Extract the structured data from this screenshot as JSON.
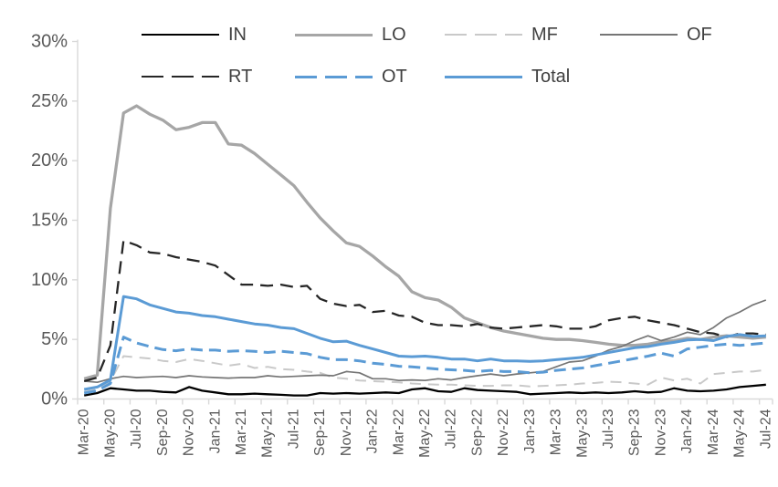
{
  "chart_data": {
    "type": "line",
    "title": "",
    "xlabel": "",
    "ylabel": "",
    "grid": false,
    "legend_position": "top",
    "ylim": [
      0,
      30
    ],
    "y_ticks": [
      "0%",
      "5%",
      "10%",
      "15%",
      "20%",
      "25%",
      "30%"
    ],
    "x_label_interval": 2,
    "x": [
      "Mar-20",
      "Apr-20",
      "May-20",
      "Jun-20",
      "Jul-20",
      "Aug-20",
      "Sep-20",
      "Oct-20",
      "Nov-20",
      "Dec-20",
      "Jan-21",
      "Feb-21",
      "Mar-21",
      "Apr-21",
      "May-21",
      "Jun-21",
      "Jul-21",
      "Aug-21",
      "Sep-21",
      "Oct-21",
      "Nov-21",
      "Dec-21",
      "Jan-22",
      "Feb-22",
      "Mar-22",
      "Apr-22",
      "May-22",
      "Jun-22",
      "Jul-22",
      "Aug-22",
      "Sep-22",
      "Oct-22",
      "Nov-22",
      "Dec-22",
      "Jan-23",
      "Feb-23",
      "Mar-23",
      "Apr-23",
      "May-23",
      "Jun-23",
      "Jul-23",
      "Aug-23",
      "Sep-23",
      "Oct-23",
      "Nov-23",
      "Dec-23",
      "Jan-24",
      "Feb-24",
      "Mar-24",
      "Apr-24",
      "May-24",
      "Jun-24",
      "Jul-24"
    ],
    "x_labels_shown": [
      "Mar-20",
      "May-20",
      "Jul-20",
      "Sep-20",
      "Nov-20",
      "Jan-21",
      "Mar-21",
      "May-21",
      "Jul-21",
      "Sep-21",
      "Nov-21",
      "Jan-22",
      "Mar-22",
      "May-22",
      "Jul-22",
      "Sep-22",
      "Nov-22",
      "Jan-23",
      "Mar-23",
      "May-23",
      "Jul-23",
      "Sep-23",
      "Nov-23",
      "Jan-24",
      "Mar-24",
      "May-24",
      "Jul-24"
    ],
    "legend_rows": [
      [
        "IN",
        "LO",
        "MF",
        "OF"
      ],
      [
        "RT",
        "OT",
        "Total"
      ]
    ],
    "series": [
      {
        "name": "IN",
        "color": "#000000",
        "style": "solid",
        "width": 2.3,
        "values": [
          0.3,
          0.5,
          0.9,
          0.8,
          0.7,
          0.7,
          0.6,
          0.55,
          1.0,
          0.7,
          0.55,
          0.4,
          0.4,
          0.45,
          0.4,
          0.35,
          0.3,
          0.3,
          0.5,
          0.45,
          0.5,
          0.45,
          0.5,
          0.55,
          0.5,
          0.8,
          0.9,
          0.65,
          0.6,
          0.9,
          0.75,
          0.7,
          0.65,
          0.6,
          0.4,
          0.45,
          0.5,
          0.55,
          0.5,
          0.55,
          0.5,
          0.55,
          0.65,
          0.55,
          0.6,
          0.9,
          0.7,
          0.65,
          0.7,
          0.8,
          1.0,
          1.1,
          1.2
        ]
      },
      {
        "name": "LO",
        "color": "#A6A6A6",
        "style": "solid",
        "width": 3.3,
        "values": [
          1.7,
          2.0,
          16.0,
          24.0,
          24.6,
          23.9,
          23.4,
          22.6,
          22.8,
          23.2,
          23.2,
          21.4,
          21.3,
          20.6,
          19.7,
          18.8,
          17.9,
          16.5,
          15.2,
          14.1,
          13.1,
          12.8,
          12.0,
          11.1,
          10.3,
          9.0,
          8.5,
          8.3,
          7.7,
          6.8,
          6.4,
          6.0,
          5.7,
          5.5,
          5.3,
          5.1,
          5.0,
          5.0,
          4.9,
          4.75,
          4.6,
          4.5,
          4.5,
          4.6,
          4.8,
          4.9,
          5.1,
          5.0,
          5.2,
          5.3,
          5.2,
          5.1,
          5.2
        ]
      },
      {
        "name": "MF",
        "color": "#C9C9C9",
        "style": "dashed",
        "width": 2.0,
        "values": [
          0.6,
          0.8,
          1.5,
          3.6,
          3.5,
          3.4,
          3.2,
          3.1,
          3.35,
          3.2,
          3.0,
          2.8,
          2.95,
          2.6,
          2.7,
          2.5,
          2.45,
          2.3,
          2.2,
          1.8,
          1.7,
          1.55,
          1.5,
          1.45,
          1.4,
          1.3,
          1.25,
          1.2,
          1.2,
          1.15,
          1.1,
          1.1,
          1.15,
          1.15,
          1.05,
          1.1,
          1.15,
          1.2,
          1.3,
          1.35,
          1.45,
          1.4,
          1.3,
          1.2,
          1.8,
          1.55,
          1.7,
          1.3,
          2.1,
          2.2,
          2.3,
          2.3,
          2.45
        ]
      },
      {
        "name": "OF",
        "color": "#757575",
        "style": "solid",
        "width": 1.7,
        "values": [
          1.5,
          1.4,
          1.7,
          1.9,
          1.8,
          1.85,
          1.9,
          1.8,
          1.95,
          1.85,
          1.8,
          1.75,
          1.8,
          1.8,
          1.95,
          1.85,
          1.9,
          1.95,
          2.0,
          1.95,
          2.3,
          2.2,
          1.7,
          1.7,
          1.55,
          1.6,
          1.55,
          1.7,
          1.6,
          1.8,
          1.95,
          2.1,
          1.95,
          2.1,
          2.2,
          2.3,
          2.7,
          3.1,
          3.2,
          3.6,
          4.1,
          4.4,
          4.9,
          5.3,
          4.9,
          5.2,
          5.6,
          5.4,
          6.0,
          6.8,
          7.3,
          7.9,
          8.3
        ]
      },
      {
        "name": "RT",
        "color": "#262626",
        "style": "dashed",
        "width": 2.3,
        "values": [
          1.5,
          1.8,
          4.5,
          13.3,
          12.9,
          12.3,
          12.2,
          11.9,
          11.7,
          11.5,
          11.2,
          10.4,
          9.6,
          9.6,
          9.5,
          9.6,
          9.4,
          9.5,
          8.4,
          8.0,
          7.8,
          7.9,
          7.3,
          7.4,
          7.0,
          6.9,
          6.4,
          6.2,
          6.2,
          6.1,
          6.3,
          6.0,
          5.9,
          6.0,
          6.1,
          6.2,
          6.1,
          5.9,
          5.9,
          6.1,
          6.6,
          6.8,
          6.9,
          6.6,
          6.4,
          6.2,
          5.9,
          5.6,
          5.5,
          5.2,
          5.5,
          5.5,
          5.4
        ]
      },
      {
        "name": "OT",
        "color": "#5B9BD5",
        "style": "dashed",
        "width": 3.0,
        "values": [
          0.5,
          0.7,
          1.3,
          5.2,
          4.7,
          4.4,
          4.15,
          4.05,
          4.2,
          4.1,
          4.1,
          4.0,
          4.05,
          4.0,
          3.9,
          4.0,
          3.9,
          3.8,
          3.5,
          3.3,
          3.3,
          3.2,
          3.0,
          2.9,
          2.75,
          2.7,
          2.6,
          2.5,
          2.45,
          2.4,
          2.3,
          2.4,
          2.3,
          2.3,
          2.2,
          2.25,
          2.4,
          2.5,
          2.6,
          2.8,
          3.0,
          3.2,
          3.4,
          3.6,
          3.85,
          3.6,
          4.2,
          4.35,
          4.5,
          4.6,
          4.5,
          4.6,
          4.7
        ]
      },
      {
        "name": "Total",
        "color": "#5B9BD5",
        "style": "solid",
        "width": 3.0,
        "values": [
          0.8,
          1.0,
          1.6,
          8.6,
          8.4,
          7.9,
          7.6,
          7.3,
          7.2,
          7.0,
          6.9,
          6.7,
          6.5,
          6.3,
          6.2,
          6.0,
          5.9,
          5.5,
          5.1,
          4.8,
          4.85,
          4.5,
          4.2,
          3.9,
          3.6,
          3.55,
          3.6,
          3.5,
          3.35,
          3.35,
          3.2,
          3.35,
          3.2,
          3.2,
          3.15,
          3.2,
          3.3,
          3.4,
          3.5,
          3.7,
          3.9,
          4.1,
          4.3,
          4.4,
          4.6,
          4.75,
          4.95,
          5.0,
          4.9,
          5.25,
          5.4,
          5.25,
          5.3
        ]
      }
    ],
    "colors": {
      "axis_line": "#D9D9D9",
      "tick_label": "#595959",
      "legend_label": "#404040",
      "accent_blue": "#5B9BD5"
    }
  }
}
